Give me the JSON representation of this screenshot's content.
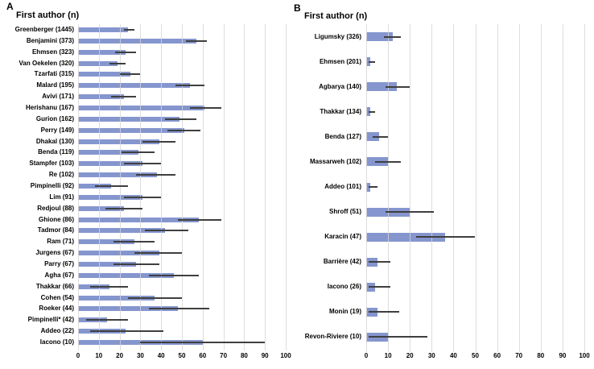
{
  "figure": {
    "background": "#ffffff",
    "bar_color": "#8b9bd4",
    "bar_alpha_color": "rgba(116,135,199,0.88)",
    "grid_color": "rgba(214,214,214,0.82)",
    "error_color": "#3f3f3f"
  },
  "chart_data": [
    {
      "type": "bar",
      "orientation": "horizontal",
      "panel_label": "A",
      "title": "First author (n)",
      "xlabel": "",
      "ylabel": "First author (n)",
      "xlim": [
        0,
        100
      ],
      "xticks": [
        0,
        10,
        20,
        30,
        40,
        50,
        60,
        70,
        80,
        90,
        100
      ],
      "grid": true,
      "legend": "none",
      "error_bars": "horizontal",
      "categories": [
        "Greenberger (1445)",
        "Benjamini (373)",
        "Ehmsen (323)",
        "Van Oekelen (320)",
        "Tzarfati (315)",
        "Malard (195)",
        "Avivi (171)",
        "Herishanu (167)",
        "Gurion (162)",
        "Perry (149)",
        "Dhakal (130)",
        "Benda (119)",
        "Stampfer (103)",
        "Re (102)",
        "Pimpinelli (92)",
        "Lim (91)",
        "Redjoul (88)",
        "Ghione (86)",
        "Tadmor (84)",
        "Ram (71)",
        "Jurgens (67)",
        "Parry (67)",
        "Agha (67)",
        "Thakkar (66)",
        "Cohen (54)",
        "Roeker (44)",
        "Pimpinelli* (42)",
        "Addeo (22)",
        "Iacono (10)"
      ],
      "values": [
        24,
        57,
        23,
        19,
        25,
        54,
        22,
        61,
        49,
        51,
        39,
        29,
        31,
        38,
        16,
        31,
        22,
        58,
        42,
        27,
        39,
        28,
        46,
        15,
        37,
        48,
        14,
        23,
        60
      ],
      "error_low": [
        22,
        52,
        18,
        15,
        20,
        47,
        16,
        54,
        42,
        43,
        31,
        21,
        22,
        28,
        8,
        22,
        13,
        48,
        32,
        17,
        27,
        17,
        34,
        6,
        24,
        34,
        4,
        6,
        30
      ],
      "error_high": [
        27,
        62,
        28,
        23,
        30,
        61,
        28,
        69,
        57,
        59,
        47,
        37,
        40,
        47,
        24,
        40,
        31,
        69,
        53,
        37,
        50,
        39,
        58,
        24,
        50,
        63,
        24,
        41,
        90
      ]
    },
    {
      "type": "bar",
      "orientation": "horizontal",
      "panel_label": "B",
      "title": "First author (n)",
      "xlabel": "",
      "ylabel": "First author (n)",
      "xlim": [
        0,
        100
      ],
      "xticks": [
        0,
        10,
        20,
        30,
        40,
        50,
        60,
        70,
        80,
        90,
        100
      ],
      "grid": true,
      "legend": "none",
      "error_bars": "horizontal",
      "categories": [
        "Ligumsky (326)",
        "Ehmsen (201)",
        "Agbarya (140)",
        "Thakkar (134)",
        "Benda (127)",
        "Massarweh (102)",
        "Addeo (101)",
        "Shroff (51)",
        "Karacin (47)",
        "Barrière (42)",
        "Iacono (26)",
        "Monin (19)",
        "Revon-Riviere (10)"
      ],
      "values": [
        12,
        2,
        14,
        2,
        6,
        10,
        2,
        20,
        36,
        5,
        4,
        5,
        10
      ],
      "error_low": [
        8,
        1,
        9,
        1,
        3,
        4,
        1,
        9,
        23,
        1,
        1,
        1,
        1
      ],
      "error_high": [
        16,
        4,
        20,
        4,
        10,
        16,
        5,
        31,
        50,
        11,
        11,
        15,
        28
      ]
    }
  ]
}
